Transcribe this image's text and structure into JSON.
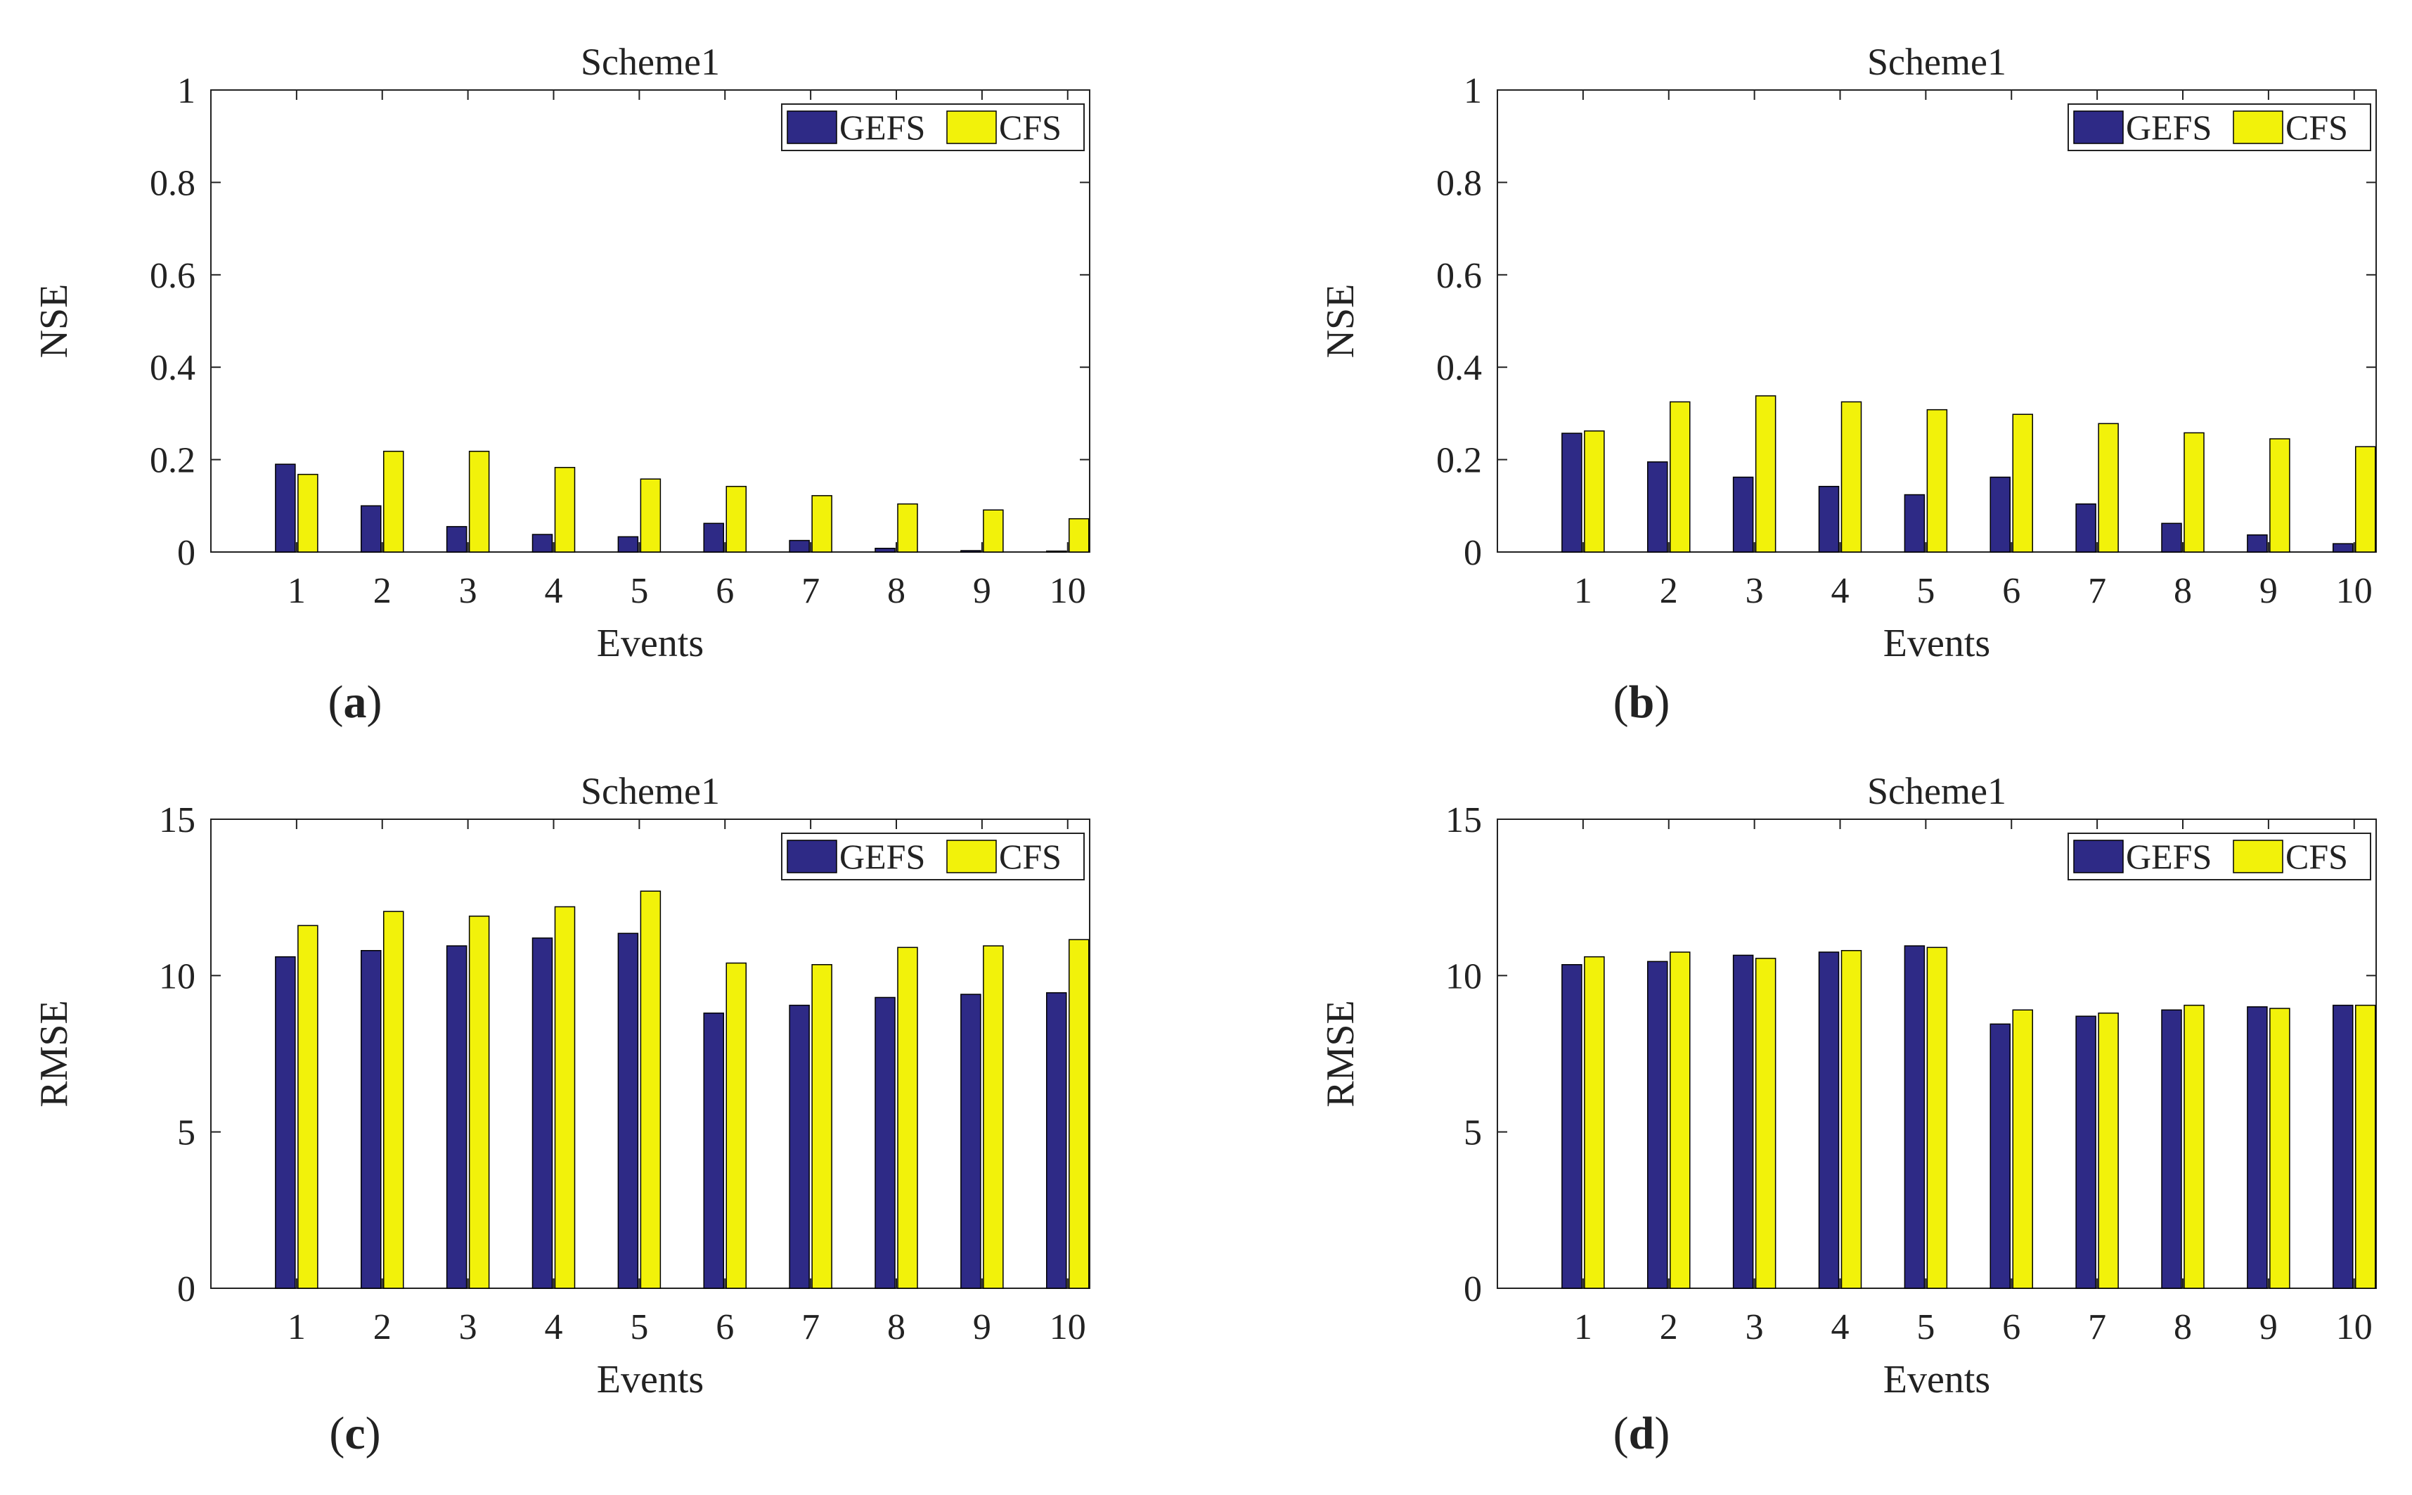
{
  "colors": {
    "gefs": "#2E2A86",
    "cfs": "#F2F20A",
    "axis": "#222222",
    "bar_edge": "#000000"
  },
  "chart_data": [
    {
      "panel": "a",
      "panel_label": "a",
      "type": "bar",
      "title": "Scheme1",
      "xlabel": "Events",
      "ylabel": "NSE",
      "categories": [
        "1",
        "2",
        "3",
        "4",
        "5",
        "6",
        "7",
        "8",
        "9",
        "10"
      ],
      "series": [
        {
          "name": "GEFS",
          "values": [
            0.19,
            0.1,
            0.055,
            0.038,
            0.033,
            0.062,
            0.025,
            0.008,
            0.003,
            0.002
          ]
        },
        {
          "name": "CFS",
          "values": [
            0.168,
            0.218,
            0.218,
            0.183,
            0.158,
            0.142,
            0.122,
            0.104,
            0.091,
            0.072
          ]
        }
      ],
      "ylim": [
        0,
        1
      ],
      "yticks": [
        0,
        0.2,
        0.4,
        0.6,
        0.8,
        1
      ],
      "ytick_labels": [
        "0",
        "0.2",
        "0.4",
        "0.6",
        "0.8",
        "1"
      ],
      "legend": "top-right",
      "grid": false
    },
    {
      "panel": "b",
      "panel_label": "b",
      "type": "bar",
      "title": "Scheme1",
      "xlabel": "Events",
      "ylabel": "NSE",
      "categories": [
        "1",
        "2",
        "3",
        "4",
        "5",
        "6",
        "7",
        "8",
        "9",
        "10"
      ],
      "series": [
        {
          "name": "GEFS",
          "values": [
            0.257,
            0.195,
            0.162,
            0.142,
            0.124,
            0.162,
            0.104,
            0.062,
            0.037,
            0.018
          ]
        },
        {
          "name": "CFS",
          "values": [
            0.262,
            0.325,
            0.338,
            0.325,
            0.308,
            0.298,
            0.278,
            0.258,
            0.245,
            0.228
          ]
        }
      ],
      "ylim": [
        0,
        1
      ],
      "yticks": [
        0,
        0.2,
        0.4,
        0.6,
        0.8,
        1
      ],
      "ytick_labels": [
        "0",
        "0.2",
        "0.4",
        "0.6",
        "0.8",
        "1"
      ],
      "legend": "top-right",
      "grid": false
    },
    {
      "panel": "c",
      "panel_label": "c",
      "type": "bar",
      "title": "Scheme1",
      "xlabel": "Events",
      "ylabel": "RMSE",
      "categories": [
        "1",
        "2",
        "3",
        "4",
        "5",
        "6",
        "7",
        "8",
        "9",
        "10"
      ],
      "series": [
        {
          "name": "GEFS",
          "values": [
            10.6,
            10.8,
            10.95,
            11.2,
            11.35,
            8.8,
            9.05,
            9.3,
            9.4,
            9.45
          ]
        },
        {
          "name": "CFS",
          "values": [
            11.6,
            12.05,
            11.9,
            12.2,
            12.7,
            10.4,
            10.35,
            10.9,
            10.95,
            11.15
          ]
        }
      ],
      "ylim": [
        0,
        15
      ],
      "yticks": [
        0,
        5,
        10,
        15
      ],
      "ytick_labels": [
        "0",
        "5",
        "10",
        "15"
      ],
      "legend": "top-right",
      "grid": false
    },
    {
      "panel": "d",
      "panel_label": "d",
      "type": "bar",
      "title": "Scheme1",
      "xlabel": "Events",
      "ylabel": "RMSE",
      "categories": [
        "1",
        "2",
        "3",
        "4",
        "5",
        "6",
        "7",
        "8",
        "9",
        "10"
      ],
      "series": [
        {
          "name": "GEFS",
          "values": [
            10.35,
            10.45,
            10.65,
            10.75,
            10.95,
            8.45,
            8.7,
            8.9,
            9.0,
            9.05
          ]
        },
        {
          "name": "CFS",
          "values": [
            10.6,
            10.75,
            10.55,
            10.8,
            10.9,
            8.9,
            8.8,
            9.05,
            8.95,
            9.05
          ]
        }
      ],
      "ylim": [
        0,
        15
      ],
      "yticks": [
        0,
        5,
        10,
        15
      ],
      "ytick_labels": [
        "0",
        "5",
        "10",
        "15"
      ],
      "legend": "top-right",
      "grid": false
    }
  ]
}
